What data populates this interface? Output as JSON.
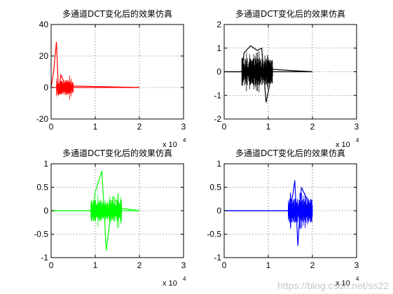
{
  "chart_data": [
    {
      "type": "line",
      "title": "多通道DCT变化后的效果仿真",
      "color": "#ff0000",
      "xlim": [
        0,
        30000
      ],
      "ylim": [
        -20,
        40
      ],
      "xticks": [
        "0",
        "1",
        "2",
        "3"
      ],
      "yticks": [
        "-20",
        "0",
        "20",
        "40"
      ],
      "x_exponent": "x 10",
      "x_exponent_power": "4",
      "grid": true,
      "series": [
        {
          "x": [
            0,
            600,
            1200,
            1700,
            2200,
            3000,
            4000,
            20000
          ],
          "y": [
            0,
            11,
            29,
            -5,
            8,
            3,
            1,
            0
          ]
        }
      ]
    },
    {
      "type": "line",
      "title": "多通道DCT变化后的效果仿真",
      "color": "#000000",
      "xlim": [
        0,
        30000
      ],
      "ylim": [
        -2,
        2
      ],
      "xticks": [
        "0",
        "1",
        "2",
        "3"
      ],
      "yticks": [
        "-2",
        "-1",
        "0",
        "1",
        "2"
      ],
      "x_exponent": "x 10",
      "x_exponent_power": "4",
      "grid": true,
      "series": [
        {
          "x": [
            0,
            4000,
            4500,
            6000,
            7500,
            8500,
            9500,
            11000,
            20000
          ],
          "y": [
            0,
            0,
            0.8,
            1.1,
            0.9,
            1.0,
            -1.3,
            0.1,
            0
          ]
        }
      ]
    },
    {
      "type": "line",
      "title": "多通道DCT变化后的效果仿真",
      "color": "#00ff00",
      "xlim": [
        0,
        30000
      ],
      "ylim": [
        -1,
        1
      ],
      "xticks": [
        "0",
        "1",
        "2",
        "3"
      ],
      "yticks": [
        "-1",
        "-0.5",
        "0",
        "0.5",
        "1"
      ],
      "x_exponent": "x 10",
      "x_exponent_power": "4",
      "grid": true,
      "series": [
        {
          "x": [
            0,
            9500,
            10000,
            11500,
            12500,
            14000,
            16000,
            20000
          ],
          "y": [
            0,
            0,
            0.4,
            0.85,
            -0.85,
            0.3,
            0.05,
            0
          ]
        }
      ]
    },
    {
      "type": "line",
      "title": "多通道DCT变化后的效果仿真",
      "color": "#0000ff",
      "xlim": [
        0,
        30000
      ],
      "ylim": [
        -1,
        1
      ],
      "xticks": [
        "0",
        "1",
        "2",
        "3"
      ],
      "yticks": [
        "-1",
        "-0.5",
        "0",
        "0.5",
        "1"
      ],
      "x_exponent": "x 10",
      "x_exponent_power": "4",
      "grid": true,
      "series": [
        {
          "x": [
            0,
            14500,
            15500,
            16000,
            16700,
            17500,
            19000,
            20000
          ],
          "y": [
            0,
            0,
            0.3,
            0.65,
            -0.75,
            0.5,
            0.2,
            0
          ]
        }
      ]
    }
  ],
  "watermark": "https://blog.csdn.net/ss22"
}
